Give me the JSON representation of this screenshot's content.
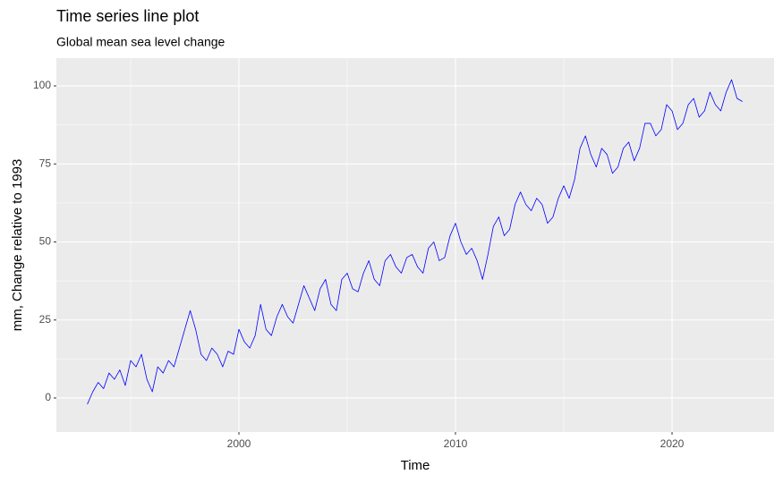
{
  "chart_data": {
    "type": "line",
    "title": "Time series line plot",
    "subtitle": "Global mean sea level change",
    "x_label": "Time",
    "y_label": "mm, Change relative to 1993",
    "color": "#0000ff",
    "grid": true,
    "xlim": [
      1991.57,
      2024.71
    ],
    "ylim": [
      -10.9,
      108.9
    ],
    "xticks": [
      2000,
      2010,
      2020
    ],
    "yticks": [
      0,
      25,
      50,
      75,
      100
    ],
    "xminor_ticks": [
      1995,
      2005,
      2015
    ],
    "yminor_ticks": [
      12.5,
      37.5,
      62.5,
      87.5
    ],
    "x": [
      1993.0,
      1993.25,
      1993.5,
      1993.75,
      1994.0,
      1994.25,
      1994.5,
      1994.75,
      1995.0,
      1995.25,
      1995.5,
      1995.75,
      1996.0,
      1996.25,
      1996.5,
      1996.75,
      1997.0,
      1997.25,
      1997.5,
      1997.75,
      1998.0,
      1998.25,
      1998.5,
      1998.75,
      1999.0,
      1999.25,
      1999.5,
      1999.75,
      2000.0,
      2000.25,
      2000.5,
      2000.75,
      2001.0,
      2001.25,
      2001.5,
      2001.75,
      2002.0,
      2002.25,
      2002.5,
      2002.75,
      2003.0,
      2003.25,
      2003.5,
      2003.75,
      2004.0,
      2004.25,
      2004.5,
      2004.75,
      2005.0,
      2005.25,
      2005.5,
      2005.75,
      2006.0,
      2006.25,
      2006.5,
      2006.75,
      2007.0,
      2007.25,
      2007.5,
      2007.75,
      2008.0,
      2008.25,
      2008.5,
      2008.75,
      2009.0,
      2009.25,
      2009.5,
      2009.75,
      2010.0,
      2010.25,
      2010.5,
      2010.75,
      2011.0,
      2011.25,
      2011.5,
      2011.75,
      2012.0,
      2012.25,
      2012.5,
      2012.75,
      2013.0,
      2013.25,
      2013.5,
      2013.75,
      2014.0,
      2014.25,
      2014.5,
      2014.75,
      2015.0,
      2015.25,
      2015.5,
      2015.75,
      2016.0,
      2016.25,
      2016.5,
      2016.75,
      2017.0,
      2017.25,
      2017.5,
      2017.75,
      2018.0,
      2018.25,
      2018.5,
      2018.75,
      2019.0,
      2019.25,
      2019.5,
      2019.75,
      2020.0,
      2020.25,
      2020.5,
      2020.75,
      2021.0,
      2021.25,
      2021.5,
      2021.75,
      2022.0,
      2022.25,
      2022.5,
      2022.75,
      2023.0,
      2023.25
    ],
    "values": [
      -2,
      2,
      5,
      3,
      8,
      6,
      9,
      4,
      12,
      10,
      14,
      6,
      2,
      10,
      8,
      12,
      10,
      16,
      22,
      28,
      22,
      14,
      12,
      16,
      14,
      10,
      15,
      14,
      22,
      18,
      16,
      20,
      30,
      22,
      20,
      26,
      30,
      26,
      24,
      30,
      36,
      32,
      28,
      35,
      38,
      30,
      28,
      38,
      40,
      35,
      34,
      40,
      44,
      38,
      36,
      44,
      46,
      42,
      40,
      45,
      46,
      42,
      40,
      48,
      50,
      44,
      45,
      52,
      56,
      50,
      46,
      48,
      44,
      38,
      46,
      55,
      58,
      52,
      54,
      62,
      66,
      62,
      60,
      64,
      62,
      56,
      58,
      64,
      68,
      64,
      70,
      80,
      84,
      78,
      74,
      80,
      78,
      72,
      74,
      80,
      82,
      76,
      80,
      88,
      88,
      84,
      86,
      94,
      92,
      86,
      88,
      94,
      96,
      90,
      92,
      98,
      94,
      92,
      98,
      102,
      96,
      95
    ]
  }
}
